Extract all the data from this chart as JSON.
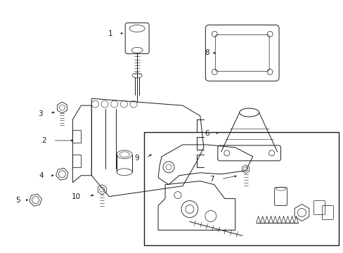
{
  "background_color": "#ffffff",
  "line_color": "#1a1a1a",
  "text_color": "#1a1a1a",
  "fig_width": 4.89,
  "fig_height": 3.6,
  "dpi": 100,
  "lw": 0.7,
  "label_fontsize": 7.5
}
